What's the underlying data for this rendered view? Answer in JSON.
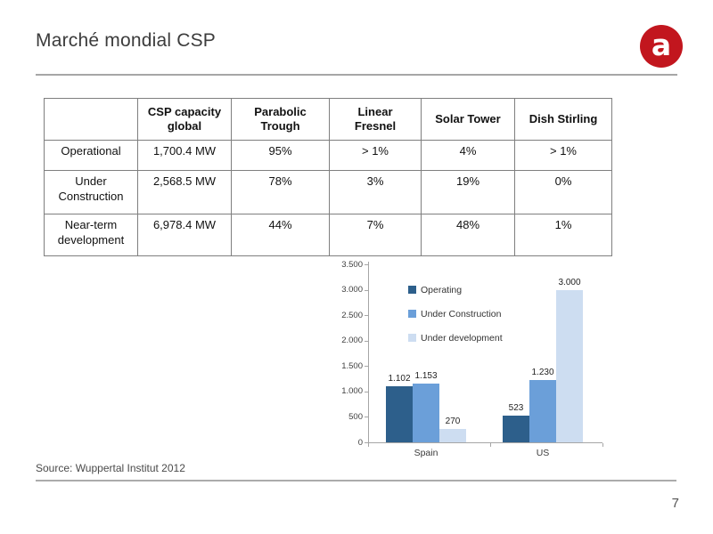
{
  "slide": {
    "title": "Marché mondial CSP",
    "source": "Source: Wuppertal Institut 2012",
    "page_number": "7",
    "logo": {
      "letter": "a",
      "color": "#c2161e"
    }
  },
  "table": {
    "headers": [
      "",
      "CSP capacity\nglobal",
      "Parabolic\nTrough",
      "Linear\nFresnel",
      "Solar Tower",
      "Dish Stirling"
    ],
    "rows": [
      {
        "label": "Operational",
        "cells": [
          "1,700.4 MW",
          "95%",
          "> 1%",
          "4%",
          "> 1%"
        ]
      },
      {
        "label": "Under\nConstruction",
        "cells": [
          "2,568.5 MW",
          "78%",
          "3%",
          "19%",
          "0%"
        ]
      },
      {
        "label": "Near-term\ndevelopment",
        "cells": [
          "6,978.4 MW",
          "44%",
          "7%",
          "48%",
          "1%"
        ]
      }
    ]
  },
  "chart_data": {
    "type": "bar",
    "title": "",
    "xlabel": "",
    "ylabel": "",
    "grid": false,
    "legend_position": "upper-left-inside",
    "categories": [
      "Spain",
      "US"
    ],
    "series": [
      {
        "name": "Operating",
        "color": "#2d5f8b",
        "values": [
          1102,
          523
        ],
        "labels": [
          "1.102",
          "523"
        ]
      },
      {
        "name": "Under Construction",
        "color": "#6b9fd9",
        "values": [
          1153,
          1230
        ],
        "labels": [
          "1.153",
          "1.230"
        ]
      },
      {
        "name": "Under development",
        "color": "#cdddf1",
        "values": [
          270,
          3000
        ],
        "labels": [
          "270",
          "3.000"
        ]
      }
    ],
    "ylim": [
      0,
      3500
    ],
    "ytick_step": 500,
    "yticks": [
      "0",
      "500",
      "1.000",
      "1.500",
      "2.000",
      "2.500",
      "3.000",
      "3.500"
    ]
  }
}
